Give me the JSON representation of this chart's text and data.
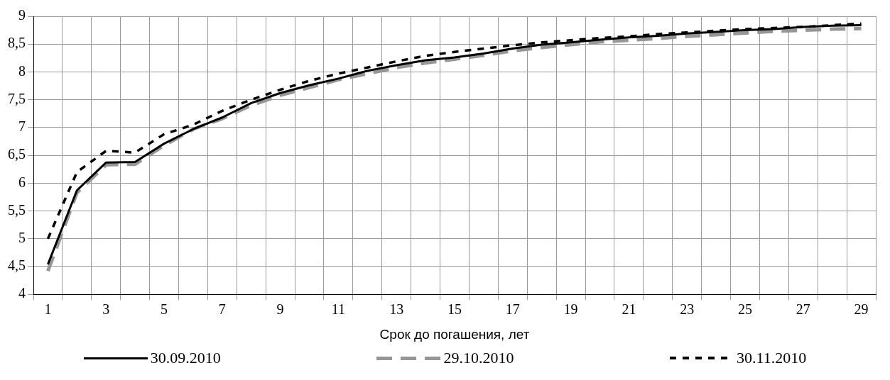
{
  "chart_data": {
    "type": "line",
    "xlabel": "Срок до погашения, лет",
    "x": [
      1,
      2,
      3,
      4,
      5,
      6,
      7,
      8,
      9,
      10,
      11,
      12,
      13,
      14,
      15,
      16,
      17,
      18,
      19,
      20,
      21,
      22,
      23,
      24,
      25,
      26,
      27,
      28,
      29
    ],
    "xlim": [
      0.5,
      29.5
    ],
    "xticks": [
      {
        "value": 0.5,
        "label": null
      },
      1,
      {
        "value": 1.5,
        "label": null
      },
      {
        "value": 2.5,
        "label": null
      },
      3,
      {
        "value": 3.5,
        "label": null
      },
      {
        "value": 4.5,
        "label": null
      },
      5,
      {
        "value": 5.5,
        "label": null
      },
      {
        "value": 6.5,
        "label": null
      },
      7,
      {
        "value": 7.5,
        "label": null
      },
      {
        "value": 8.5,
        "label": null
      },
      9,
      {
        "value": 9.5,
        "label": null
      },
      {
        "value": 10.5,
        "label": null
      },
      11,
      {
        "value": 11.5,
        "label": null
      },
      {
        "value": 12.5,
        "label": null
      },
      13,
      {
        "value": 13.5,
        "label": null
      },
      {
        "value": 14.5,
        "label": null
      },
      15,
      {
        "value": 15.5,
        "label": null
      },
      {
        "value": 16.5,
        "label": null
      },
      17,
      {
        "value": 17.5,
        "label": null
      },
      {
        "value": 18.5,
        "label": null
      },
      19,
      {
        "value": 19.5,
        "label": null
      },
      {
        "value": 20.5,
        "label": null
      },
      21,
      {
        "value": 21.5,
        "label": null
      },
      {
        "value": 22.5,
        "label": null
      },
      23,
      {
        "value": 23.5,
        "label": null
      },
      {
        "value": 24.5,
        "label": null
      },
      25,
      {
        "value": 25.5,
        "label": null
      },
      {
        "value": 26.5,
        "label": null
      },
      27,
      {
        "value": 27.5,
        "label": null
      },
      {
        "value": 28.5,
        "label": null
      },
      29,
      {
        "value": 29.5,
        "label": null
      }
    ],
    "series": [
      {
        "name": "30.09.2010",
        "color": "#000000",
        "line_style": "solid",
        "values": [
          4.54,
          5.87,
          6.37,
          6.38,
          6.71,
          6.97,
          7.18,
          7.44,
          7.62,
          7.76,
          7.88,
          8.02,
          8.12,
          8.21,
          8.26,
          8.33,
          8.42,
          8.49,
          8.53,
          8.58,
          8.62,
          8.65,
          8.69,
          8.72,
          8.75,
          8.77,
          8.81,
          8.83,
          8.84
        ]
      },
      {
        "name": "29.10.2010",
        "color": "#969696",
        "line_style": "dashed",
        "values": [
          4.42,
          5.83,
          6.33,
          6.34,
          6.68,
          6.97,
          7.16,
          7.4,
          7.58,
          7.72,
          7.86,
          7.97,
          8.08,
          8.16,
          8.23,
          8.3,
          8.38,
          8.44,
          8.49,
          8.54,
          8.57,
          8.6,
          8.64,
          8.67,
          8.7,
          8.73,
          8.75,
          8.77,
          8.78
        ]
      },
      {
        "name": "30.11.2010",
        "color": "#000000",
        "line_style": "dotted",
        "values": [
          5.0,
          6.2,
          6.58,
          6.55,
          6.88,
          7.05,
          7.3,
          7.5,
          7.68,
          7.84,
          7.97,
          8.08,
          8.19,
          8.29,
          8.36,
          8.42,
          8.48,
          8.53,
          8.57,
          8.61,
          8.64,
          8.68,
          8.71,
          8.74,
          8.77,
          8.79,
          8.81,
          8.84,
          8.87
        ]
      }
    ],
    "ylim": [
      4,
      9
    ],
    "yticks": [
      4,
      {
        "value": 4.5,
        "label": "4,5"
      },
      5,
      {
        "value": 5.5,
        "label": "5,5"
      },
      6,
      {
        "value": 6.5,
        "label": "6,5"
      },
      7,
      {
        "value": 7.5,
        "label": "7,5"
      },
      8,
      {
        "value": 8.5,
        "label": "8,5"
      },
      9
    ],
    "grid": true,
    "legend": "bottom",
    "marker": "none"
  }
}
